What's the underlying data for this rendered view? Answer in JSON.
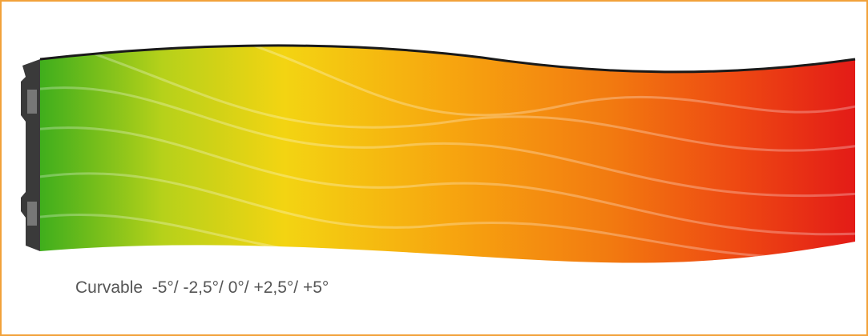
{
  "caption": "Curvable  -5°/ -2,5°/ 0°/ +2,5°/ +5°"
}
